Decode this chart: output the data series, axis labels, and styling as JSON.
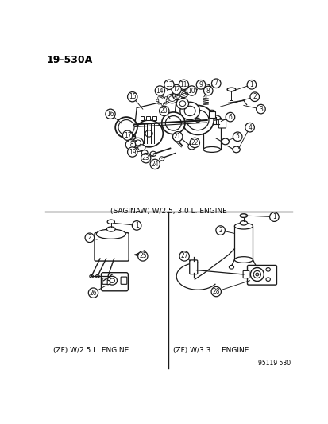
{
  "title": "19-530A",
  "bg_color": "#ffffff",
  "diagram_color": "#1a1a1a",
  "top_label": "(SAGINAW) W/2.5, 3.0 L. ENGINE",
  "bottom_left_label": "(ZF) W/2.5 L. ENGINE",
  "bottom_right_label": "(ZF) W/3.3 L. ENGINE",
  "watermark": "95119 530",
  "fig_width": 4.14,
  "fig_height": 5.33
}
